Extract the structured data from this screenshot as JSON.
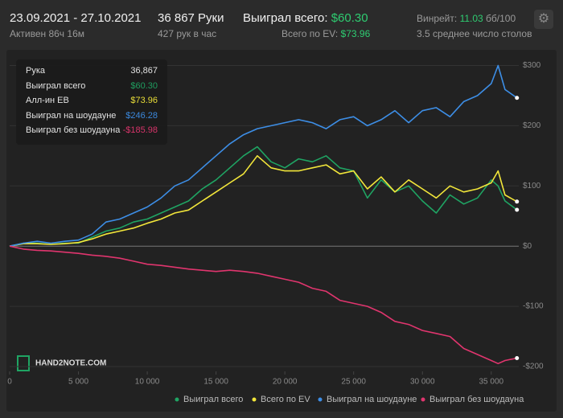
{
  "header": {
    "date_range": "23.09.2021 - 27.10.2021",
    "active": "Активен 86ч 16м",
    "hands": "36 867 Руки",
    "hands_per_hour": "427 рук в час",
    "won_label": "Выиграл всего:",
    "won_value": "$60.30",
    "ev_label": "Всего по EV:",
    "ev_value": "$73.96",
    "winrate_label": "Винрейт:",
    "winrate_value": "11.03",
    "winrate_unit": "бб/100",
    "tables": "3.5 среднее число столов"
  },
  "tooltip": {
    "rows": [
      {
        "label": "Рука",
        "value": "36,867"
      },
      {
        "label": "Выиграл всего",
        "value": "$60.30"
      },
      {
        "label": "Алл-ин ЕВ",
        "value": "$73.96"
      },
      {
        "label": "Выиграл на шоудауне",
        "value": "$246.28"
      },
      {
        "label": "Выиграл без шоудауна",
        "value": "-$185.98"
      }
    ]
  },
  "logo": "HAND2NOTE.COM",
  "chart_data": {
    "type": "line",
    "x": [
      0,
      1000,
      2000,
      3000,
      4000,
      5000,
      6000,
      7000,
      8000,
      9000,
      10000,
      11000,
      12000,
      13000,
      14000,
      15000,
      16000,
      17000,
      18000,
      19000,
      20000,
      21000,
      22000,
      23000,
      24000,
      25000,
      26000,
      27000,
      28000,
      29000,
      30000,
      31000,
      32000,
      33000,
      34000,
      35000,
      35500,
      36000,
      36867
    ],
    "series": [
      {
        "name": "Выиграл всего",
        "color": "#1fa463",
        "values": [
          0,
          5,
          5,
          3,
          5,
          5,
          15,
          25,
          30,
          40,
          45,
          55,
          65,
          75,
          95,
          110,
          130,
          150,
          165,
          140,
          130,
          145,
          140,
          150,
          130,
          125,
          80,
          110,
          90,
          100,
          75,
          55,
          85,
          70,
          80,
          110,
          100,
          75,
          60.3
        ]
      },
      {
        "name": "Всего по EV",
        "color": "#f2e63a",
        "values": [
          0,
          4,
          4,
          3,
          4,
          6,
          12,
          20,
          25,
          30,
          38,
          45,
          55,
          60,
          75,
          90,
          105,
          120,
          150,
          130,
          125,
          125,
          130,
          135,
          120,
          125,
          95,
          115,
          90,
          110,
          95,
          80,
          100,
          90,
          95,
          105,
          125,
          85,
          73.96
        ]
      },
      {
        "name": "Выиграл на шоудауне",
        "color": "#3d8ee6",
        "values": [
          0,
          5,
          8,
          5,
          8,
          10,
          20,
          40,
          45,
          55,
          65,
          80,
          100,
          110,
          130,
          150,
          170,
          185,
          195,
          200,
          205,
          210,
          205,
          195,
          210,
          215,
          200,
          210,
          225,
          205,
          225,
          230,
          215,
          240,
          250,
          270,
          300,
          260,
          246.28
        ]
      },
      {
        "name": "Выиграл без шоудауна",
        "color": "#e0356e",
        "values": [
          0,
          -5,
          -7,
          -8,
          -10,
          -12,
          -15,
          -17,
          -20,
          -25,
          -30,
          -32,
          -35,
          -38,
          -40,
          -42,
          -40,
          -42,
          -45,
          -50,
          -55,
          -60,
          -70,
          -75,
          -90,
          -95,
          -100,
          -110,
          -125,
          -130,
          -140,
          -145,
          -150,
          -170,
          -180,
          -190,
          -195,
          -190,
          -185.98
        ]
      }
    ],
    "xlim": [
      0,
      37000
    ],
    "ylim": [
      -208,
      318
    ],
    "xticks": [
      0,
      {
        "value": 5000,
        "label": "5 000"
      },
      {
        "value": 10000,
        "label": "10 000"
      },
      {
        "value": 15000,
        "label": "15 000"
      },
      {
        "value": 20000,
        "label": "20 000"
      },
      {
        "value": 25000,
        "label": "25 000"
      },
      {
        "value": 30000,
        "label": "30 000"
      },
      {
        "value": 35000,
        "label": "35 000"
      }
    ],
    "yticks": [
      {
        "value": -200,
        "label": "-$200"
      },
      {
        "value": -100,
        "label": "-$100"
      },
      {
        "value": 0,
        "label": "$0"
      },
      {
        "value": 100,
        "label": "$100"
      },
      {
        "value": 200,
        "label": "$200"
      },
      {
        "value": 300,
        "label": "$300"
      }
    ],
    "grid": true
  }
}
